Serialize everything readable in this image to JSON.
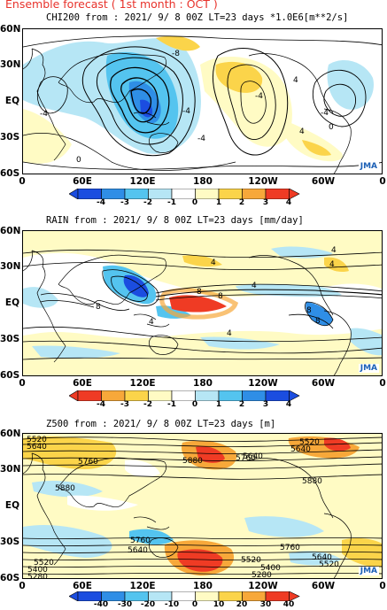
{
  "header": {
    "title": "Ensemble forecast ( 1st month : OCT )"
  },
  "lat_labels": [
    "60N",
    "30N",
    "EQ",
    "30S",
    "60S"
  ],
  "lon_labels": [
    "0",
    "60E",
    "120E",
    "180",
    "120W",
    "60W",
    "0"
  ],
  "watermark": "JMA",
  "panels": [
    {
      "title": "CHI200  from : 2021/ 9/ 8 00Z LT=23 days   *1.0E6[m**2/s]",
      "colorbar": {
        "labels": [
          "-4",
          "-3",
          "-2",
          "-1",
          "0",
          "1",
          "2",
          "3",
          "4"
        ],
        "colors": [
          "#1b4de0",
          "#2f8ee6",
          "#54c4ef",
          "#b6e6f5",
          "#ffffff",
          "#fffbc4",
          "#fbd44a",
          "#f7a83a",
          "#ef3b24"
        ]
      },
      "contour_labels": [
        "-8",
        "-4",
        "-4",
        "0",
        "-4",
        "4",
        "-4",
        "-4",
        "4",
        "0"
      ]
    },
    {
      "title": "RAIN   from : 2021/ 9/ 8 00Z LT=23 days  [mm/day]",
      "colorbar": {
        "labels": [
          "-4",
          "-3",
          "-2",
          "-1",
          "0",
          "1",
          "2",
          "3",
          "4"
        ],
        "colors": [
          "#ef3b24",
          "#f7a83a",
          "#fbd44a",
          "#fffbc4",
          "#ffffff",
          "#b6e6f5",
          "#54c4ef",
          "#2f8ee6",
          "#1b4de0"
        ]
      },
      "contour_labels": [
        "4",
        "4",
        "4",
        "4",
        "8",
        "8",
        "8",
        "4",
        "8",
        "8",
        "4"
      ]
    },
    {
      "title": "Z500   from : 2021/ 9/ 8 00Z LT=23 days  [m]",
      "colorbar": {
        "labels": [
          "-40",
          "-30",
          "-20",
          "-10",
          "0",
          "10",
          "20",
          "30",
          "40"
        ],
        "colors": [
          "#1b4de0",
          "#2f8ee6",
          "#54c4ef",
          "#b6e6f5",
          "#ffffff",
          "#fffbc4",
          "#fbd44a",
          "#f7a83a",
          "#ef3b24"
        ]
      },
      "contour_labels": [
        "5520",
        "5640",
        "5760",
        "5880",
        "5880",
        "5760",
        "5640",
        "5520",
        "5880",
        "5760",
        "5640",
        "5520",
        "5400",
        "5280",
        "5520",
        "5400",
        "5280",
        "5520",
        "5640",
        "5760",
        "5640"
      ]
    }
  ]
}
